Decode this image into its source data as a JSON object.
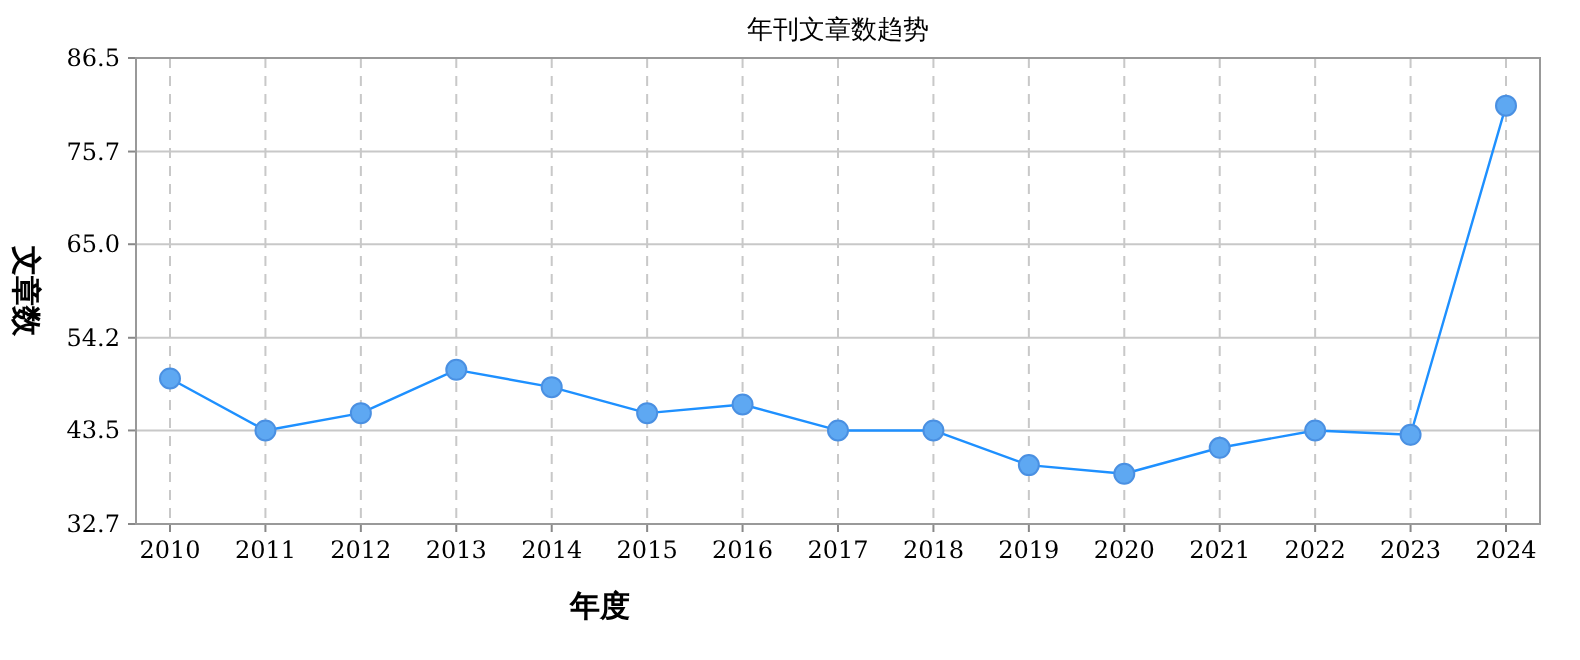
{
  "chart_data": {
    "type": "line",
    "title": "年刊文章数趋势",
    "xlabel": "年度",
    "ylabel": "文章数",
    "categories": [
      "2010",
      "2011",
      "2012",
      "2013",
      "2014",
      "2015",
      "2016",
      "2017",
      "2018",
      "2019",
      "2020",
      "2021",
      "2022",
      "2023",
      "2024"
    ],
    "series": [
      {
        "color": "#1e90ff",
        "values": [
          49.5,
          43.5,
          45.5,
          50.5,
          48.5,
          45.5,
          46.5,
          43.5,
          43.5,
          39.5,
          38.5,
          41.5,
          43.5,
          43,
          81
        ]
      }
    ],
    "ylim": [
      32.7,
      86.5
    ],
    "yticks": [
      32.7,
      43.5,
      54.2,
      {
        "value": 65,
        "label": "65.0"
      },
      75.7,
      86.5
    ],
    "grid": true,
    "marker": "circle"
  }
}
